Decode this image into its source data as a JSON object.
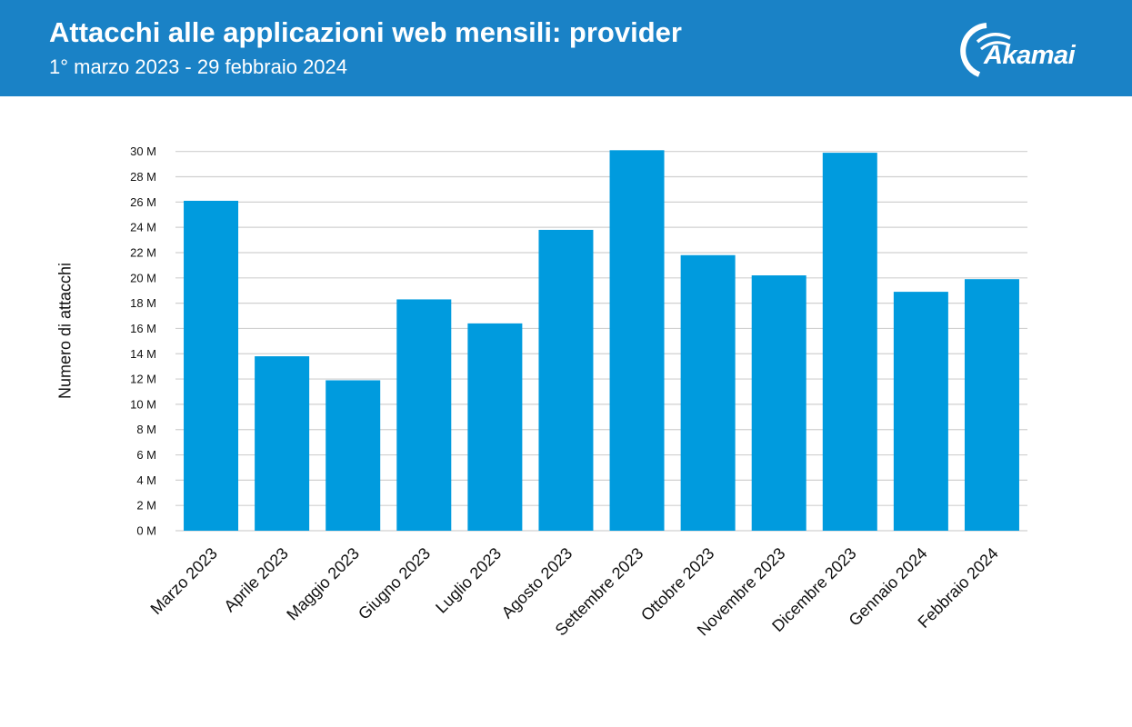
{
  "header": {
    "title": "Attacchi alle applicazioni web mensili: provider",
    "subtitle": "1° marzo 2023 - 29 febbraio 2024",
    "logo_text": "Akamai",
    "background_color": "#1a82c6"
  },
  "chart_data": {
    "type": "bar",
    "title": "Attacchi alle applicazioni web mensili: provider",
    "subtitle": "1° marzo 2023 - 29 febbraio 2024",
    "xlabel": "",
    "ylabel": "Numero di attacchi",
    "categories": [
      "Marzo 2023",
      "Aprile 2023",
      "Maggio 2023",
      "Giugno 2023",
      "Luglio 2023",
      "Agosto 2023",
      "Settembre 2023",
      "Ottobre 2023",
      "Novembre 2023",
      "Dicembre 2023",
      "Gennaio 2024",
      "Febbraio 2024"
    ],
    "values": [
      26.1,
      13.8,
      11.9,
      18.3,
      16.4,
      23.8,
      30.1,
      21.8,
      20.2,
      29.9,
      18.9,
      19.9
    ],
    "unit": "M",
    "ylim": [
      0,
      30
    ],
    "yticks": [
      "0 M",
      "2 M",
      "4 M",
      "6 M",
      "8 M",
      "10 M",
      "12 M",
      "14 M",
      "16 M",
      "18 M",
      "20 M",
      "22 M",
      "24 M",
      "26 M",
      "28 M",
      "30 M"
    ],
    "grid": true,
    "legend": "none",
    "bar_color": "#009bde"
  }
}
